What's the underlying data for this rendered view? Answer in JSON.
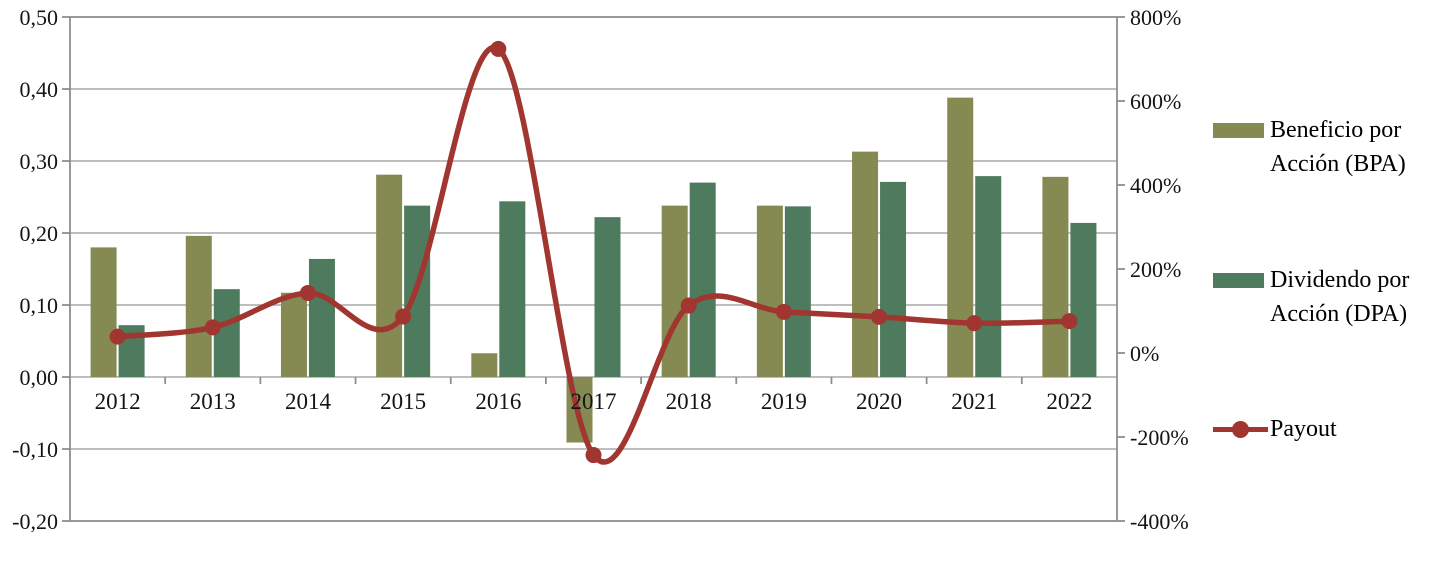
{
  "chart_data": {
    "type": "bar",
    "subtype": "combo-bar-line-dual-axis",
    "categories": [
      "2012",
      "2013",
      "2014",
      "2015",
      "2016",
      "2017",
      "2018",
      "2019",
      "2020",
      "2021",
      "2022"
    ],
    "series": [
      {
        "name": "Beneficio por Acción (BPA)",
        "type": "bar",
        "axis": "left",
        "color": "#848A52",
        "values": [
          0.18,
          0.196,
          0.117,
          0.281,
          0.033,
          -0.091,
          0.238,
          0.238,
          0.313,
          0.388,
          0.278
        ]
      },
      {
        "name": "Dividendo por Acción (DPA)",
        "type": "bar",
        "axis": "left",
        "color": "#4E7A5E",
        "values": [
          0.072,
          0.122,
          0.164,
          0.238,
          0.244,
          0.222,
          0.27,
          0.237,
          0.271,
          0.279,
          0.214
        ]
      },
      {
        "name": "Payout",
        "type": "line",
        "axis": "right",
        "unit": "%",
        "color": "#A13530",
        "values": [
          39,
          61,
          143,
          87,
          724,
          -243,
          113,
          98,
          86,
          71,
          76
        ]
      }
    ],
    "left_axis": {
      "min": -0.2,
      "max": 0.5,
      "tick_values": [
        0.5,
        0.4,
        0.3,
        0.2,
        0.1,
        0.0,
        -0.1,
        -0.2
      ],
      "tick_labels": [
        "0,50",
        "0,40",
        "0,30",
        "0,20",
        "0,10",
        "0,00",
        "-0,10",
        "-0,20"
      ],
      "gridline_values": [
        0.4,
        0.3,
        0.2,
        0.1,
        0.0,
        -0.1
      ]
    },
    "right_axis": {
      "min": -400,
      "max": 800,
      "tick_values": [
        800,
        600,
        400,
        200,
        0,
        -200,
        -400
      ],
      "tick_labels": [
        "800%",
        "600%",
        "400%",
        "200%",
        "0%",
        "-200%",
        "-400%"
      ]
    },
    "grid": true,
    "legend_position": "right",
    "colors": {
      "gridline": "#A9A9A9",
      "axis": "#8E8E8E",
      "text": "#141414",
      "background": "#FFFFFF"
    }
  },
  "legend": {
    "items": [
      {
        "label": "Beneficio por Acción (BPA)",
        "swatch": "bar"
      },
      {
        "label": "Dividendo por Acción (DPA)",
        "swatch": "bar"
      },
      {
        "label": "Payout",
        "swatch": "line-marker"
      }
    ]
  }
}
